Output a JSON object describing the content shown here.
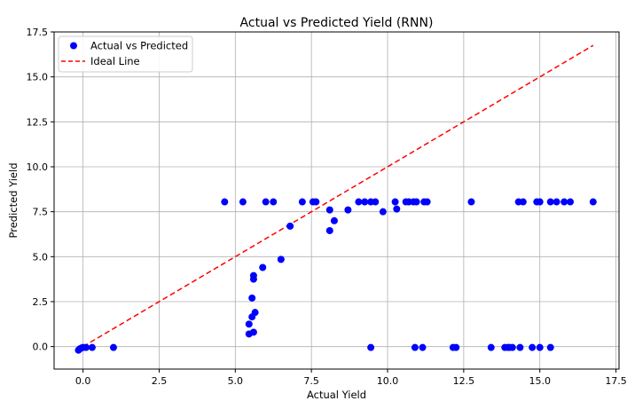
{
  "chart_data": {
    "type": "scatter",
    "title": "Actual vs Predicted Yield (RNN)",
    "xlabel": "Actual Yield",
    "ylabel": "Predicted Yield",
    "xlim": [
      -0.95,
      17.6
    ],
    "ylim": [
      -1.25,
      17.5
    ],
    "xticks": [
      0.0,
      2.5,
      5.0,
      7.5,
      10.0,
      12.5,
      15.0,
      17.5
    ],
    "xtick_labels": [
      "0.0",
      "2.5",
      "5.0",
      "7.5",
      "10.0",
      "12.5",
      "15.0",
      "17.5"
    ],
    "yticks": [
      0.0,
      2.5,
      5.0,
      7.5,
      10.0,
      12.5,
      15.0,
      17.5
    ],
    "ytick_labels": [
      "0.0",
      "2.5",
      "5.0",
      "7.5",
      "10.0",
      "12.5",
      "15.0",
      "17.5"
    ],
    "grid": true,
    "legend_position": "top-left",
    "series": [
      {
        "name": "Actual vs Predicted",
        "kind": "scatter",
        "color": "#0000ff",
        "points": [
          [
            -0.15,
            -0.2
          ],
          [
            -0.1,
            -0.12
          ],
          [
            -0.05,
            -0.08
          ],
          [
            0.0,
            -0.05
          ],
          [
            0.1,
            -0.05
          ],
          [
            0.3,
            -0.05
          ],
          [
            1.0,
            -0.05
          ],
          [
            4.65,
            8.05
          ],
          [
            5.25,
            8.05
          ],
          [
            6.0,
            8.05
          ],
          [
            6.25,
            8.05
          ],
          [
            7.2,
            8.05
          ],
          [
            7.55,
            8.05
          ],
          [
            7.65,
            8.05
          ],
          [
            9.05,
            8.05
          ],
          [
            9.25,
            8.05
          ],
          [
            9.45,
            8.05
          ],
          [
            9.6,
            8.05
          ],
          [
            10.25,
            8.05
          ],
          [
            10.6,
            8.05
          ],
          [
            10.7,
            8.05
          ],
          [
            10.85,
            8.05
          ],
          [
            10.95,
            8.05
          ],
          [
            11.2,
            8.05
          ],
          [
            11.3,
            8.05
          ],
          [
            12.75,
            8.05
          ],
          [
            14.3,
            8.05
          ],
          [
            14.45,
            8.05
          ],
          [
            14.9,
            8.05
          ],
          [
            15.0,
            8.05
          ],
          [
            15.35,
            8.05
          ],
          [
            15.55,
            8.05
          ],
          [
            15.8,
            8.05
          ],
          [
            16.0,
            8.05
          ],
          [
            16.75,
            8.05
          ],
          [
            8.1,
            7.6
          ],
          [
            8.7,
            7.6
          ],
          [
            9.85,
            7.5
          ],
          [
            10.3,
            7.65
          ],
          [
            8.25,
            7.0
          ],
          [
            8.1,
            6.45
          ],
          [
            6.8,
            6.7
          ],
          [
            6.5,
            4.85
          ],
          [
            5.9,
            4.4
          ],
          [
            5.6,
            3.95
          ],
          [
            5.6,
            3.75
          ],
          [
            5.55,
            2.7
          ],
          [
            5.55,
            1.65
          ],
          [
            5.65,
            1.9
          ],
          [
            5.45,
            1.25
          ],
          [
            5.45,
            0.7
          ],
          [
            5.6,
            0.8
          ],
          [
            9.45,
            -0.05
          ],
          [
            10.9,
            -0.05
          ],
          [
            11.15,
            -0.05
          ],
          [
            12.15,
            -0.05
          ],
          [
            12.25,
            -0.05
          ],
          [
            13.4,
            -0.05
          ],
          [
            13.85,
            -0.05
          ],
          [
            13.95,
            -0.05
          ],
          [
            14.0,
            -0.05
          ],
          [
            14.1,
            -0.05
          ],
          [
            14.35,
            -0.05
          ],
          [
            14.75,
            -0.05
          ],
          [
            15.0,
            -0.05
          ],
          [
            15.35,
            -0.05
          ]
        ]
      },
      {
        "name": "Ideal Line",
        "kind": "line",
        "color": "#ff0000",
        "dash": "dashed",
        "x": [
          0.0,
          16.75
        ],
        "y": [
          0.0,
          16.75
        ]
      }
    ]
  }
}
